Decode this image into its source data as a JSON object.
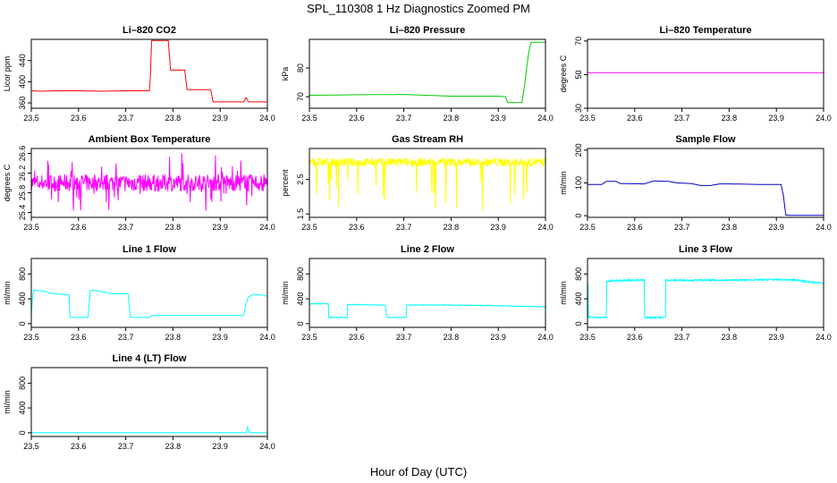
{
  "figure": {
    "title": "SPL_110308  1 Hz Diagnostics Zoomed PM",
    "xlabel": "Hour of Day (UTC)"
  },
  "chart_data": [
    {
      "type": "line",
      "title": "Li–820 CO2",
      "ylabel": "Licor ppm",
      "color": "#ff0000",
      "xlim": [
        23.5,
        24.0
      ],
      "ylim": [
        350,
        480
      ],
      "xticks": [
        "23.5",
        "23.6",
        "23.7",
        "23.8",
        "23.9",
        "24.0"
      ],
      "yticks": [
        "360",
        "400",
        "440"
      ],
      "ytick_values": [
        360,
        400,
        440
      ],
      "x": [
        23.5,
        23.52,
        23.55,
        23.6,
        23.65,
        23.7,
        23.75,
        23.752,
        23.755,
        23.76,
        23.77,
        23.78,
        23.79,
        23.795,
        23.8,
        23.81,
        23.82,
        23.825,
        23.83,
        23.84,
        23.86,
        23.88,
        23.885,
        23.9,
        23.92,
        23.94,
        23.95,
        23.955,
        23.96,
        23.965,
        23.97,
        24.0
      ],
      "y": [
        383,
        382,
        383,
        383,
        382,
        383,
        383,
        408,
        478,
        478,
        478,
        478,
        478,
        422,
        422,
        422,
        422,
        422,
        385,
        385,
        385,
        385,
        362,
        362,
        362,
        362,
        362,
        370,
        362,
        362,
        362,
        362
      ]
    },
    {
      "type": "line",
      "title": "Li–820 Pressure",
      "ylabel": "kPa",
      "color": "#00cc00",
      "xlim": [
        23.5,
        24.0
      ],
      "ylim": [
        66,
        90
      ],
      "xticks": [
        "23.5",
        "23.6",
        "23.7",
        "23.8",
        "23.9",
        "24.0"
      ],
      "yticks": [
        "70",
        "80"
      ],
      "ytick_values": [
        70,
        80
      ],
      "x": [
        23.5,
        23.6,
        23.7,
        23.8,
        23.9,
        23.915,
        23.92,
        23.95,
        23.955,
        23.96,
        23.965,
        23.97,
        23.975,
        24.0
      ],
      "y": [
        70.5,
        70.7,
        70.8,
        70.2,
        70.2,
        70.0,
        68.0,
        68.0,
        73,
        80,
        86,
        89,
        89,
        89
      ]
    },
    {
      "type": "line",
      "title": "Li–820 Temperature",
      "ylabel": "degrees C",
      "color": "#ff00ff",
      "xlim": [
        23.5,
        24.0
      ],
      "ylim": [
        30,
        71
      ],
      "xticks": [
        "23.5",
        "23.6",
        "23.7",
        "23.8",
        "23.9",
        "24.0"
      ],
      "yticks": [
        "30",
        "50",
        "70"
      ],
      "ytick_values": [
        30,
        50,
        70
      ],
      "x": [
        23.5,
        24.0
      ],
      "y": [
        51.2,
        51.2
      ]
    },
    {
      "type": "line",
      "title": "Ambient Box Temperature",
      "ylabel": "degrees C",
      "color": "#ff00ff",
      "xlim": [
        23.5,
        24.0
      ],
      "ylim": [
        25.3,
        26.7
      ],
      "xticks": [
        "23.5",
        "23.6",
        "23.7",
        "23.8",
        "23.9",
        "24.0"
      ],
      "yticks": [
        "25.4",
        "25.8",
        "26.2",
        "26.6"
      ],
      "ytick_values": [
        25.4,
        25.8,
        26.2,
        26.6
      ],
      "x": [
        23.5,
        24.0
      ],
      "y": [
        26.0,
        26.0
      ]
    },
    {
      "type": "line",
      "title": "Gas Stream RH",
      "ylabel": "percent",
      "color": "#ffff00",
      "xlim": [
        23.5,
        24.0
      ],
      "ylim": [
        1.4,
        3.4
      ],
      "xticks": [
        "23.5",
        "23.6",
        "23.7",
        "23.8",
        "23.9",
        "24.0"
      ],
      "yticks": [
        "1.5",
        "2.5"
      ],
      "ytick_values": [
        1.5,
        2.5
      ],
      "x": [
        23.5,
        24.0
      ],
      "y": [
        3.0,
        3.0
      ]
    },
    {
      "type": "line",
      "title": "Sample Flow",
      "ylabel": "ml/min",
      "color": "#0000cc",
      "xlim": [
        23.5,
        24.0
      ],
      "ylim": [
        -5,
        205
      ],
      "xticks": [
        "23.5",
        "23.6",
        "23.7",
        "23.8",
        "23.9",
        "24.0"
      ],
      "yticks": [
        "0",
        "100",
        "200"
      ],
      "ytick_values": [
        0,
        100,
        200
      ],
      "x": [
        23.5,
        23.53,
        23.54,
        23.56,
        23.57,
        23.62,
        23.64,
        23.67,
        23.69,
        23.72,
        23.74,
        23.76,
        23.78,
        23.8,
        23.84,
        23.88,
        23.9,
        23.91,
        23.915,
        23.92,
        23.93,
        23.95,
        24.0
      ],
      "y": [
        95,
        95,
        105,
        105,
        98,
        97,
        106,
        105,
        100,
        98,
        92,
        92,
        97,
        97,
        96,
        95,
        95,
        95,
        60,
        2,
        1,
        1,
        1
      ]
    },
    {
      "type": "line",
      "title": "Line 1 Flow",
      "ylabel": "ml/min",
      "color": "#00ffff",
      "xlim": [
        23.5,
        24.0
      ],
      "ylim": [
        -60,
        1050
      ],
      "xticks": [
        "23.5",
        "23.6",
        "23.7",
        "23.8",
        "23.9",
        "24.0"
      ],
      "yticks": [
        "0",
        "400",
        "800"
      ],
      "ytick_values": [
        0,
        400,
        800
      ],
      "x": [
        23.5,
        23.502,
        23.505,
        23.53,
        23.54,
        23.57,
        23.58,
        23.582,
        23.62,
        23.625,
        23.63,
        23.66,
        23.67,
        23.705,
        23.71,
        23.75,
        23.755,
        23.9,
        23.95,
        23.955,
        23.96,
        23.97,
        23.99,
        24.0
      ],
      "y": [
        100,
        380,
        540,
        520,
        490,
        470,
        470,
        100,
        100,
        530,
        540,
        500,
        480,
        480,
        100,
        100,
        130,
        130,
        130,
        330,
        430,
        470,
        460,
        440
      ]
    },
    {
      "type": "line",
      "title": "Line 2 Flow",
      "ylabel": "ml/min",
      "color": "#00ffff",
      "xlim": [
        23.5,
        24.0
      ],
      "ylim": [
        -60,
        1050
      ],
      "xticks": [
        "23.5",
        "23.6",
        "23.7",
        "23.8",
        "23.9",
        "24.0"
      ],
      "yticks": [
        "0",
        "400",
        "800"
      ],
      "ytick_values": [
        0,
        400,
        800
      ],
      "x": [
        23.5,
        23.54,
        23.541,
        23.58,
        23.581,
        23.66,
        23.665,
        23.705,
        23.706,
        23.8,
        23.9,
        23.95,
        24.0
      ],
      "y": [
        320,
        320,
        100,
        100,
        310,
        300,
        100,
        100,
        300,
        300,
        290,
        280,
        270
      ],
      "noise": 10
    },
    {
      "type": "line",
      "title": "Line 3 Flow",
      "ylabel": "ml/min",
      "color": "#00ffff",
      "xlim": [
        23.5,
        24.0
      ],
      "ylim": [
        -60,
        1050
      ],
      "xticks": [
        "23.5",
        "23.6",
        "23.7",
        "23.8",
        "23.9",
        "24.0"
      ],
      "yticks": [
        "0",
        "400",
        "800"
      ],
      "ytick_values": [
        0,
        400,
        800
      ],
      "x": [
        23.5,
        23.501,
        23.502,
        23.54,
        23.541,
        23.55,
        23.58,
        23.62,
        23.621,
        23.665,
        23.666,
        23.7,
        23.8,
        23.9,
        23.95,
        23.96,
        24.0
      ],
      "y": [
        100,
        650,
        100,
        100,
        680,
        690,
        700,
        700,
        100,
        100,
        700,
        700,
        700,
        710,
        700,
        680,
        650
      ],
      "noise": 25
    },
    {
      "type": "line",
      "title": "Line 4 (LT) Flow",
      "ylabel": "ml/min",
      "color": "#00ffff",
      "xlim": [
        23.5,
        24.0
      ],
      "ylim": [
        -60,
        1050
      ],
      "xticks": [
        "23.5",
        "23.6",
        "23.7",
        "23.8",
        "23.9",
        "24.0"
      ],
      "yticks": [
        "0",
        "400",
        "800"
      ],
      "ytick_values": [
        0,
        400,
        800
      ],
      "x": [
        23.5,
        23.9,
        23.955,
        23.958,
        23.962,
        23.965,
        24.0
      ],
      "y": [
        0,
        0,
        0,
        90,
        0,
        0,
        0
      ],
      "noise": 0
    }
  ]
}
